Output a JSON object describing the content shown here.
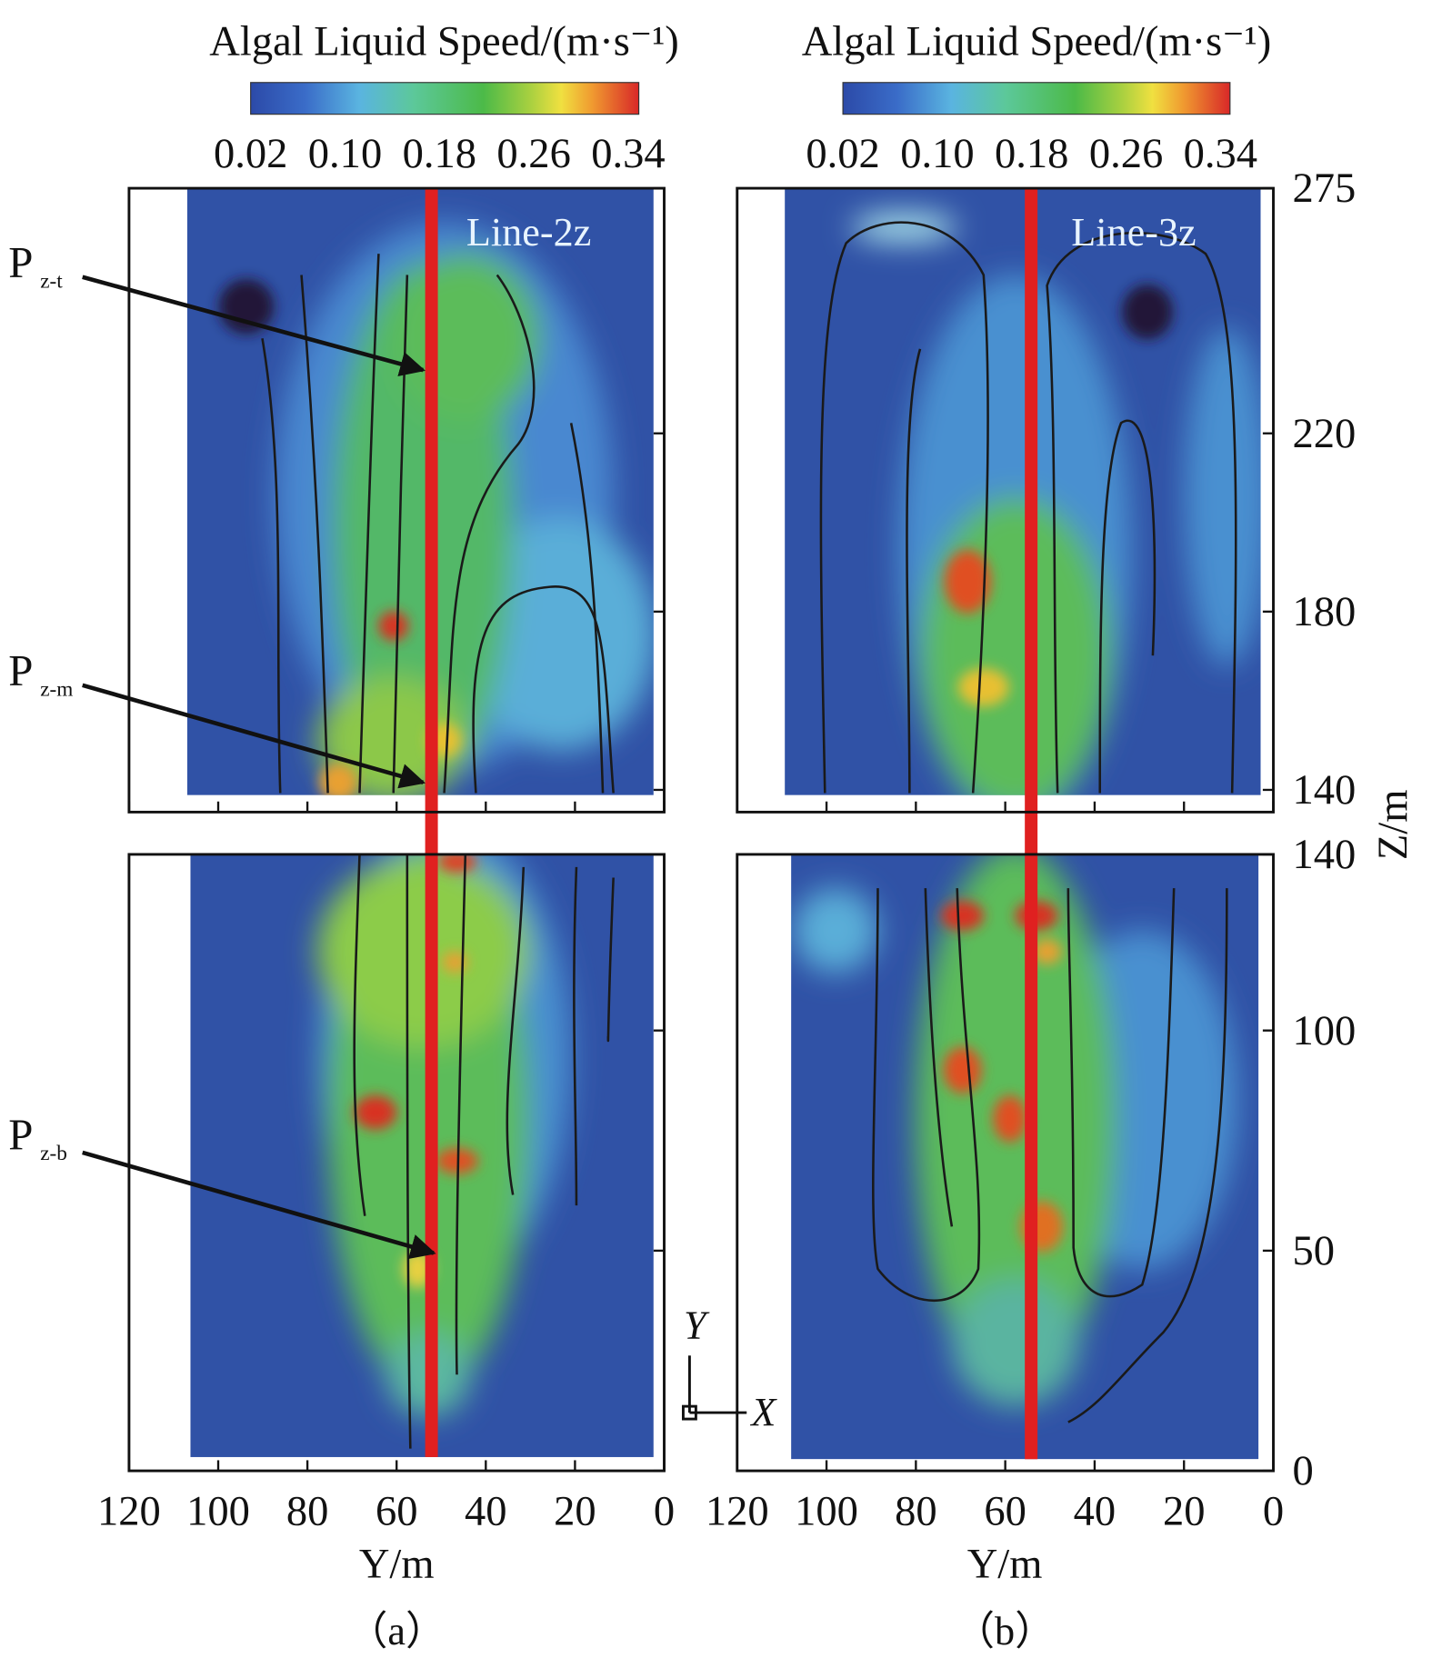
{
  "colorbars": [
    {
      "title": "Algal Liquid Speed/(m·s⁻¹)",
      "ticks": [
        "0.02",
        "0.10",
        "0.18",
        "0.26",
        "0.34"
      ]
    },
    {
      "title": "Algal Liquid Speed/(m·s⁻¹)",
      "ticks": [
        "0.02",
        "0.10",
        "0.18",
        "0.26",
        "0.34"
      ]
    }
  ],
  "panels": [
    {
      "caption": "（a）",
      "line_label": "Line-2z",
      "x_label": "Y/m",
      "x_ticks": [
        120,
        100,
        80,
        60,
        40,
        20,
        0
      ]
    },
    {
      "caption": "（b）",
      "line_label": "Line-3z",
      "x_label": "Y/m",
      "x_ticks": [
        120,
        100,
        80,
        60,
        40,
        20,
        0
      ]
    }
  ],
  "z_label": "Z/m",
  "z_ticks_top": [
    275,
    220,
    180,
    140
  ],
  "z_ticks_bottom": [
    140,
    100,
    50,
    0
  ],
  "points": [
    {
      "main": "P",
      "sub": "z-t"
    },
    {
      "main": "P",
      "sub": "z-m"
    },
    {
      "main": "P",
      "sub": "z-b"
    }
  ],
  "triad": {
    "y": "Y",
    "x": "X"
  }
}
